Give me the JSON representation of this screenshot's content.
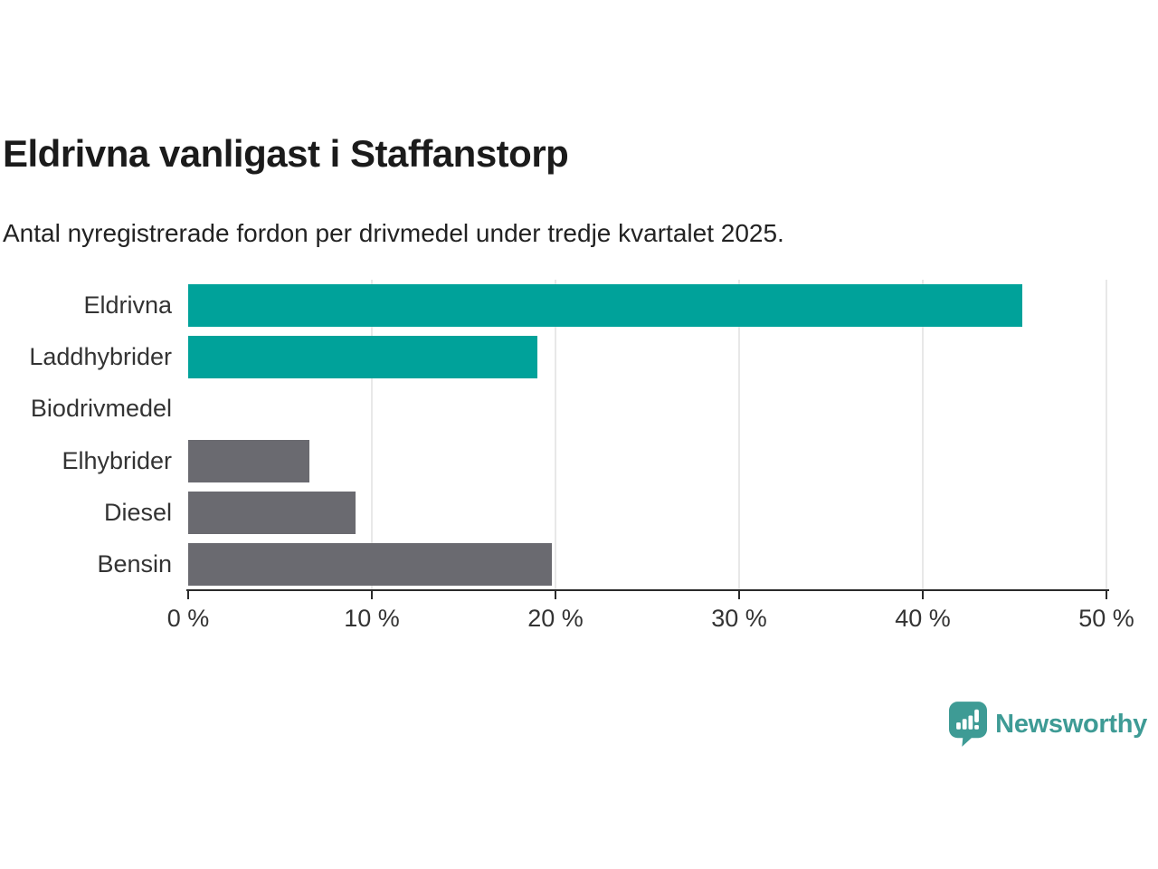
{
  "header": {
    "title": "Eldrivna vanligast i Staffanstorp",
    "subtitle": "Antal nyregistrerade fordon per drivmedel under tredje kvartalet 2025."
  },
  "chart_data": {
    "type": "bar",
    "orientation": "horizontal",
    "title": "Eldrivna vanligast i Staffanstorp",
    "subtitle": "Antal nyregistrerade fordon per drivmedel under tredje kvartalet 2025.",
    "xlabel": "",
    "ylabel": "",
    "unit": "%",
    "categories": [
      "Eldrivna",
      "Laddhybrider",
      "Biodrivmedel",
      "Elhybrider",
      "Diesel",
      "Bensin"
    ],
    "values": [
      45.4,
      19.0,
      0,
      6.6,
      9.1,
      19.8
    ],
    "bar_colors": [
      "#00a29a",
      "#00a29a",
      "#00a29a",
      "#6a6a70",
      "#6a6a70",
      "#6a6a70"
    ],
    "xlim": [
      0,
      50
    ],
    "x_ticks": [
      0,
      10,
      20,
      30,
      40,
      50
    ],
    "x_tick_labels": [
      "0 %",
      "10 %",
      "20 %",
      "30 %",
      "40 %",
      "50 %"
    ],
    "grid": "vertical",
    "legend": "none"
  },
  "colors": {
    "highlight": "#00a29a",
    "muted": "#6a6a70",
    "axis": "#2b2b2b",
    "grid": "#e8e8e8",
    "text": "#333333",
    "brand": "#3e9b95"
  },
  "footer": {
    "brand": "Newsworthy"
  }
}
